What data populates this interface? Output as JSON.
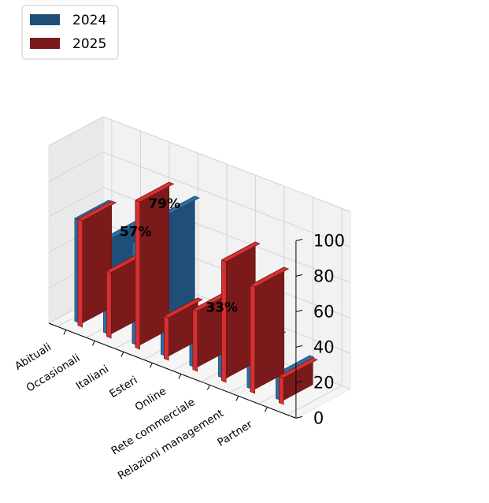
{
  "chart_data": {
    "type": "bar",
    "categories": [
      "Abituali",
      "Occasionali",
      "Italiani",
      "Esteri",
      "Online",
      "Rete commerciale",
      "Relazioni management",
      "Partner"
    ],
    "series": [
      {
        "name": "2024",
        "color": "#1f4e79",
        "values": [
          58,
          53,
          57,
          79,
          28,
          33,
          22,
          14
        ]
      },
      {
        "name": "2025",
        "color": "#7a1a1a",
        "values": [
          60,
          37,
          83,
          24,
          34,
          68,
          60,
          15
        ]
      }
    ],
    "data_labels": [
      "57%",
      "79%",
      "33%"
    ],
    "zlim": [
      0,
      100
    ],
    "zticks": [
      0,
      20,
      40,
      60,
      80,
      100
    ],
    "legend_position": "top-left",
    "grid": true
  }
}
